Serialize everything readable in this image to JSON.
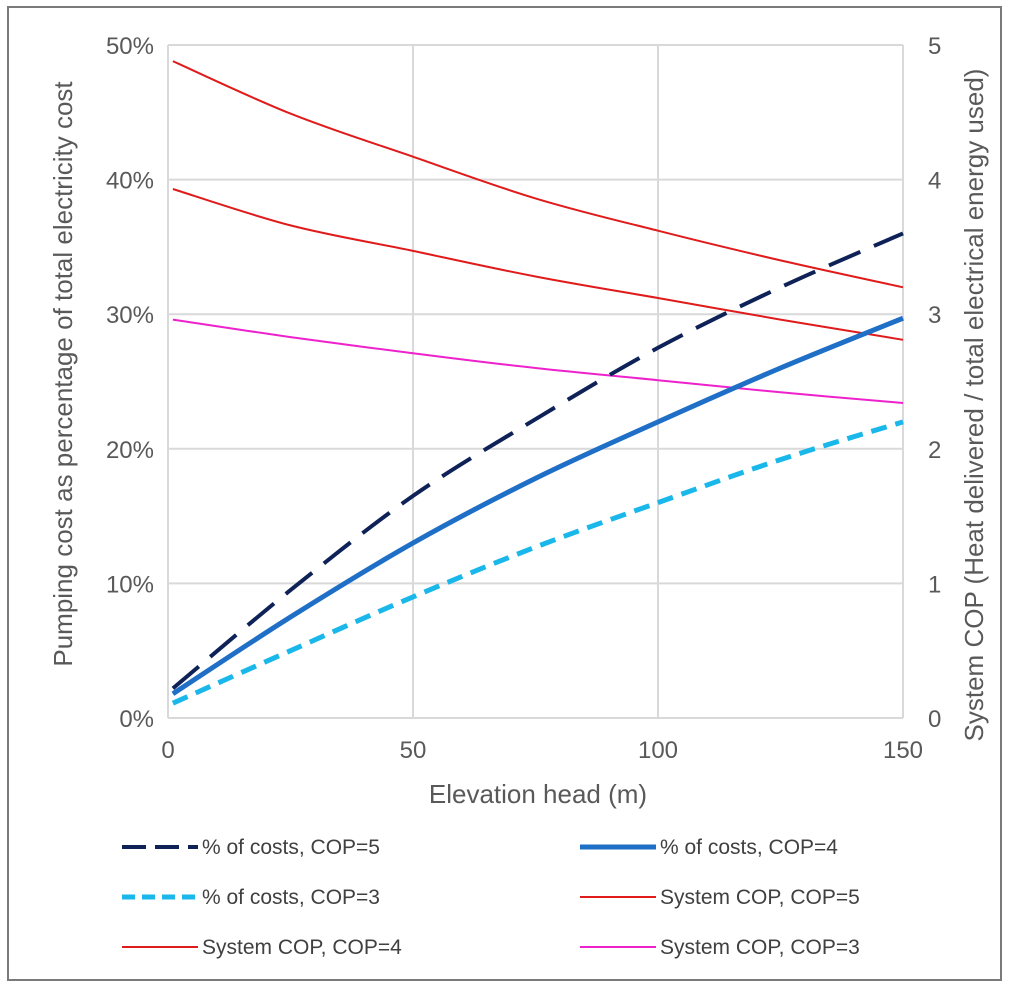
{
  "chart_data": {
    "type": "line",
    "title": "",
    "xlabel": "Elevation head (m)",
    "ylabel": "Pumping cost as percentage of total electricity cost",
    "y2label": "System COP (Heat delivered / total electrical energy used)",
    "xlim": [
      0,
      150
    ],
    "ylim": [
      0,
      50
    ],
    "y2lim": [
      0,
      5
    ],
    "x_ticks": [
      "0",
      "50",
      "100",
      "150"
    ],
    "y_ticks": [
      "0%",
      "10%",
      "20%",
      "30%",
      "40%",
      "50%"
    ],
    "y2_ticks": [
      "0",
      "1",
      "2",
      "3",
      "4",
      "5"
    ],
    "grid": true,
    "legend_position": "bottom",
    "x": [
      1,
      25,
      50,
      75,
      100,
      125,
      150
    ],
    "series": [
      {
        "name": "% of costs, COP=5",
        "axis": "left",
        "color": "#0e2258",
        "style": "long-dash",
        "width": 4,
        "values": [
          2.2,
          9.5,
          16.5,
          22.2,
          27.5,
          32.0,
          36.0
        ]
      },
      {
        "name": "% of costs, COP=4",
        "axis": "left",
        "color": "#1f6fc7",
        "style": "solid",
        "width": 5,
        "values": [
          1.8,
          7.5,
          13.0,
          17.8,
          22.0,
          26.0,
          29.7
        ]
      },
      {
        "name": "% of costs, COP=3",
        "axis": "left",
        "color": "#1ab8ea",
        "style": "short-dash",
        "width": 5,
        "values": [
          1.1,
          5.0,
          9.0,
          12.7,
          16.0,
          19.2,
          22.0
        ]
      },
      {
        "name": "System COP, COP=5",
        "axis": "right",
        "color": "#e01b1b",
        "style": "solid",
        "width": 2,
        "values": [
          4.88,
          4.49,
          4.17,
          3.86,
          3.62,
          3.4,
          3.2
        ]
      },
      {
        "name": "System COP, COP=4",
        "axis": "right",
        "color": "#e01b1b",
        "style": "solid",
        "width": 2,
        "values": [
          3.93,
          3.66,
          3.47,
          3.28,
          3.12,
          2.96,
          2.81
        ]
      },
      {
        "name": "System COP, COP=3",
        "axis": "right",
        "color": "#ee22cc",
        "style": "solid",
        "width": 2,
        "values": [
          2.96,
          2.83,
          2.71,
          2.6,
          2.51,
          2.42,
          2.34
        ]
      }
    ]
  }
}
